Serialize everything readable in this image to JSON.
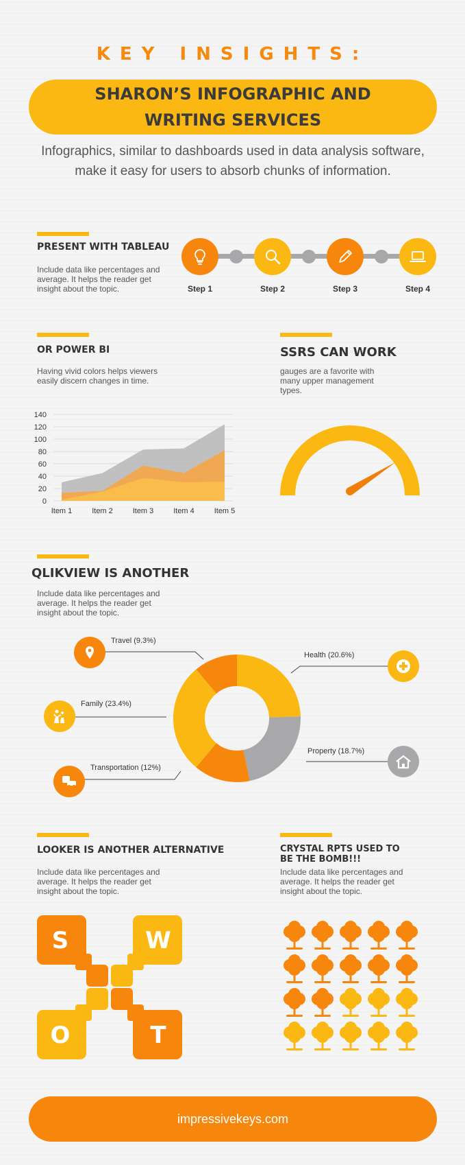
{
  "header": {
    "kicker": "KEY INSIGHTS:",
    "title": "SHARON’S  INFOGRAPHIC AND WRITING SERVICES",
    "intro": "Infographics, similar to dashboards used in data analysis software, make it easy for users to absorb chunks of information."
  },
  "tableau": {
    "title": "PRESENT WITH TABLEAU",
    "text": "Include data like percentages and average. It helps the reader get insight about the topic.",
    "steps": [
      {
        "label": "Step 1",
        "icon": "lightbulb-icon",
        "color": "#f7860c"
      },
      {
        "label": "Step 2",
        "icon": "magnifier-icon",
        "color": "#fbb813"
      },
      {
        "label": "Step 3",
        "icon": "pencil-icon",
        "color": "#f7860c"
      },
      {
        "label": "Step 4",
        "icon": "laptop-icon",
        "color": "#fbb813"
      }
    ]
  },
  "powerbi": {
    "title": "OR POWER BI",
    "text": "Having vivid colors helps viewers easily discern changes in time."
  },
  "ssrs": {
    "title": "SSRS CAN WORK",
    "text": "gauges are a favorite with many upper management types.",
    "gauge_value": 0.8
  },
  "qlikview": {
    "title": "QLIKVIEW IS ANOTHER",
    "text": "Include data like percentages and average. It helps the reader get insight about the topic.",
    "segments": [
      {
        "label": "Travel (9.3%)",
        "icon": "location-pin-icon"
      },
      {
        "label": "Family (23.4%)",
        "icon": "family-icon"
      },
      {
        "label": "Transportation (12%)",
        "icon": "car-icon"
      },
      {
        "label": "Health (20.6%)",
        "icon": "medical-cross-icon"
      },
      {
        "label": "Property (18.7%)",
        "icon": "house-icon"
      }
    ]
  },
  "looker": {
    "title": "LOOKER IS ANOTHER ALTERNATIVE",
    "text": "Include data like percentages and average. It helps the reader get insight about the topic.",
    "swot": [
      "S",
      "W",
      "O",
      "T"
    ]
  },
  "crystal": {
    "title": "CRYSTAL RPTS USED TO BE THE BOMB!!!",
    "text": "Include data like percentages and average. It helps the reader get insight about the topic.",
    "trees_total": 20,
    "trees_orange": 12
  },
  "footer": {
    "url": "impressivekeys.com"
  },
  "chart_data": [
    {
      "type": "area",
      "categories": [
        "Item 1",
        "Item 2",
        "Item 3",
        "Item 4",
        "Item 5"
      ],
      "ylim": [
        0,
        140
      ],
      "yticks": [
        0,
        20,
        40,
        60,
        80,
        100,
        120,
        140
      ],
      "grid": true,
      "series": [
        {
          "values": [
            30,
            45,
            83,
            85,
            124
          ],
          "color": "#b6b6b6"
        },
        {
          "values": [
            13,
            16,
            57,
            45,
            82
          ],
          "color": "#f9a340"
        },
        {
          "values": [
            2,
            15,
            37,
            30,
            31
          ],
          "color": "#fbc04a"
        }
      ]
    },
    {
      "type": "pie",
      "categories": [
        "Health",
        "Property",
        "Transportation",
        "Family",
        "Travel"
      ],
      "values": [
        20.6,
        18.7,
        12,
        23.4,
        9.3
      ],
      "colors": [
        "#fbb813",
        "#a8a8aa",
        "#f7860c",
        "#fbb813",
        "#f7860c"
      ]
    }
  ]
}
